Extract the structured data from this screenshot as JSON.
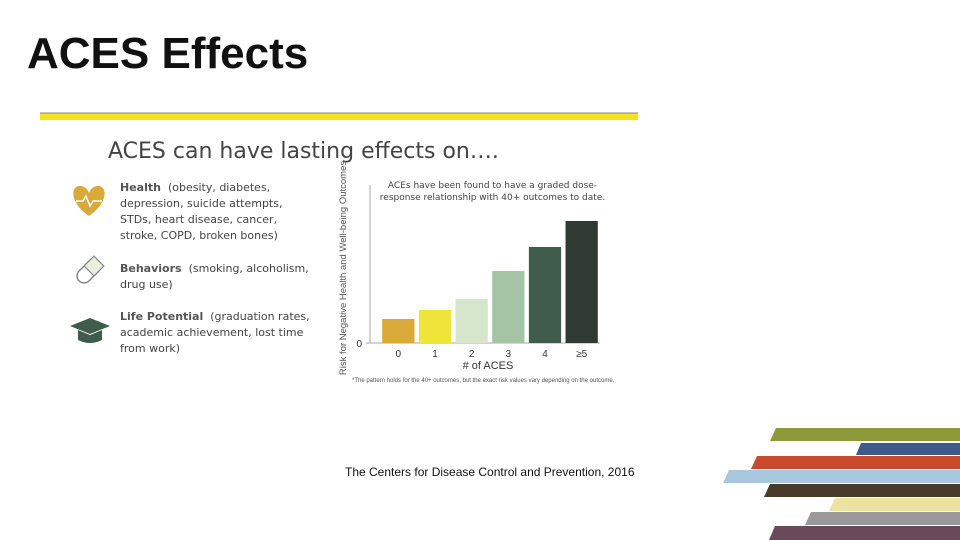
{
  "title": "ACES Effects",
  "heading": "ACES can have lasting effects on….",
  "items": [
    {
      "label": "Health",
      "detail": "(obesity, diabetes, depression, suicide attempts, STDs, heart disease, cancer, stroke, COPD, broken bones)"
    },
    {
      "label": "Behaviors",
      "detail": "(smoking, alcoholism, drug use)"
    },
    {
      "label": "Life Potential",
      "detail": "(graduation rates, academic achievement, lost time from work)"
    }
  ],
  "chart_data": {
    "type": "bar",
    "annotation": "ACEs have been found to have a graded dose-response relationship with 40+ outcomes to date.",
    "y_label": "Risk for Negative Health and Well-being Outcomes",
    "x_label": "# of ACES",
    "footnote": "*The pattern holds for the 40+ outcomes, but the exact risk values vary depending on the outcome.",
    "categories": [
      "0",
      "1",
      "2",
      "3",
      "4",
      "≥5"
    ],
    "values": [
      24,
      33,
      44,
      72,
      96,
      122
    ],
    "colors": [
      "#d9a93a",
      "#f0e43a",
      "#d6e6cc",
      "#a5c4a6",
      "#3f5c4c",
      "#2f3b32"
    ],
    "ylim": [
      0,
      130
    ],
    "yticks": [
      0
    ]
  },
  "source": "The Centers for Disease Control and Prevention, 2016"
}
